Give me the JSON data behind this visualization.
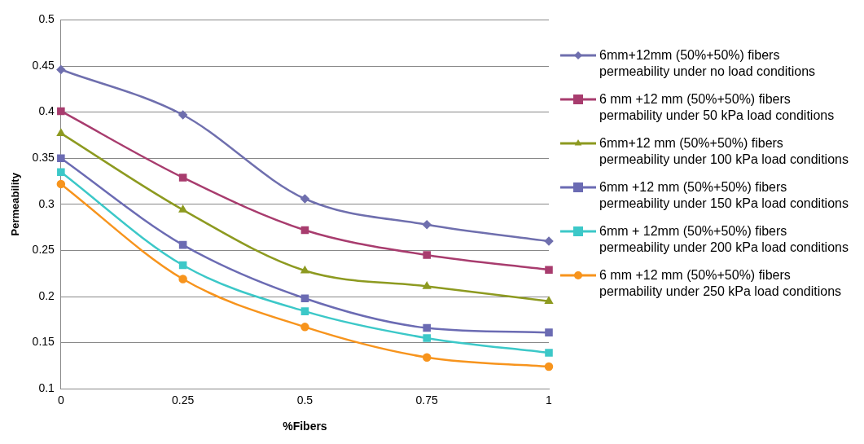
{
  "chart_data": {
    "type": "line",
    "xlabel": "%Fibers",
    "ylabel": "Permeability",
    "x": [
      0,
      0.25,
      0.5,
      0.75,
      1
    ],
    "xlim": [
      0,
      1
    ],
    "xticks": [
      0,
      0.25,
      0.5,
      0.75,
      1
    ],
    "ylim": [
      0.1,
      0.5
    ],
    "yticks": [
      0.1,
      0.15,
      0.2,
      0.25,
      0.3,
      0.35,
      0.4,
      0.45,
      0.5
    ],
    "grid": "y",
    "legend": "right",
    "series": [
      {
        "name": "6mm+12mm (50%+50%) fibers permeability under no load conditions",
        "color": "#6f6fae",
        "marker": "diamond",
        "values": [
          0.446,
          0.397,
          0.306,
          0.278,
          0.26
        ]
      },
      {
        "name": "6 mm +12 mm (50%+50%) fibers permability under 50 kPa load conditions",
        "color": "#a83c6e",
        "marker": "square",
        "values": [
          0.401,
          0.329,
          0.272,
          0.245,
          0.229
        ]
      },
      {
        "name": "6mm+12 mm (50%+50%) fibers permeability under 100 kPa load conditions",
        "color": "#8d9a20",
        "marker": "triangle",
        "values": [
          0.377,
          0.294,
          0.228,
          0.211,
          0.195
        ]
      },
      {
        "name": "6mm +12 mm (50%+50%) fibers permeability under 150 kPa load conditions",
        "color": "#6b6bb3",
        "marker": "square",
        "values": [
          0.35,
          0.256,
          0.198,
          0.166,
          0.161
        ]
      },
      {
        "name": "6mm + 12mm (50%+50%) fibers permeability under 200 kPa load conditions",
        "color": "#3cc8c8",
        "marker": "square",
        "values": [
          0.335,
          0.234,
          0.184,
          0.155,
          0.139
        ]
      },
      {
        "name": "6 mm +12 mm (50%+50%) fibers permability under 250 kPa load conditions",
        "color": "#f7941d",
        "marker": "circle",
        "values": [
          0.322,
          0.219,
          0.167,
          0.134,
          0.124
        ]
      }
    ]
  }
}
